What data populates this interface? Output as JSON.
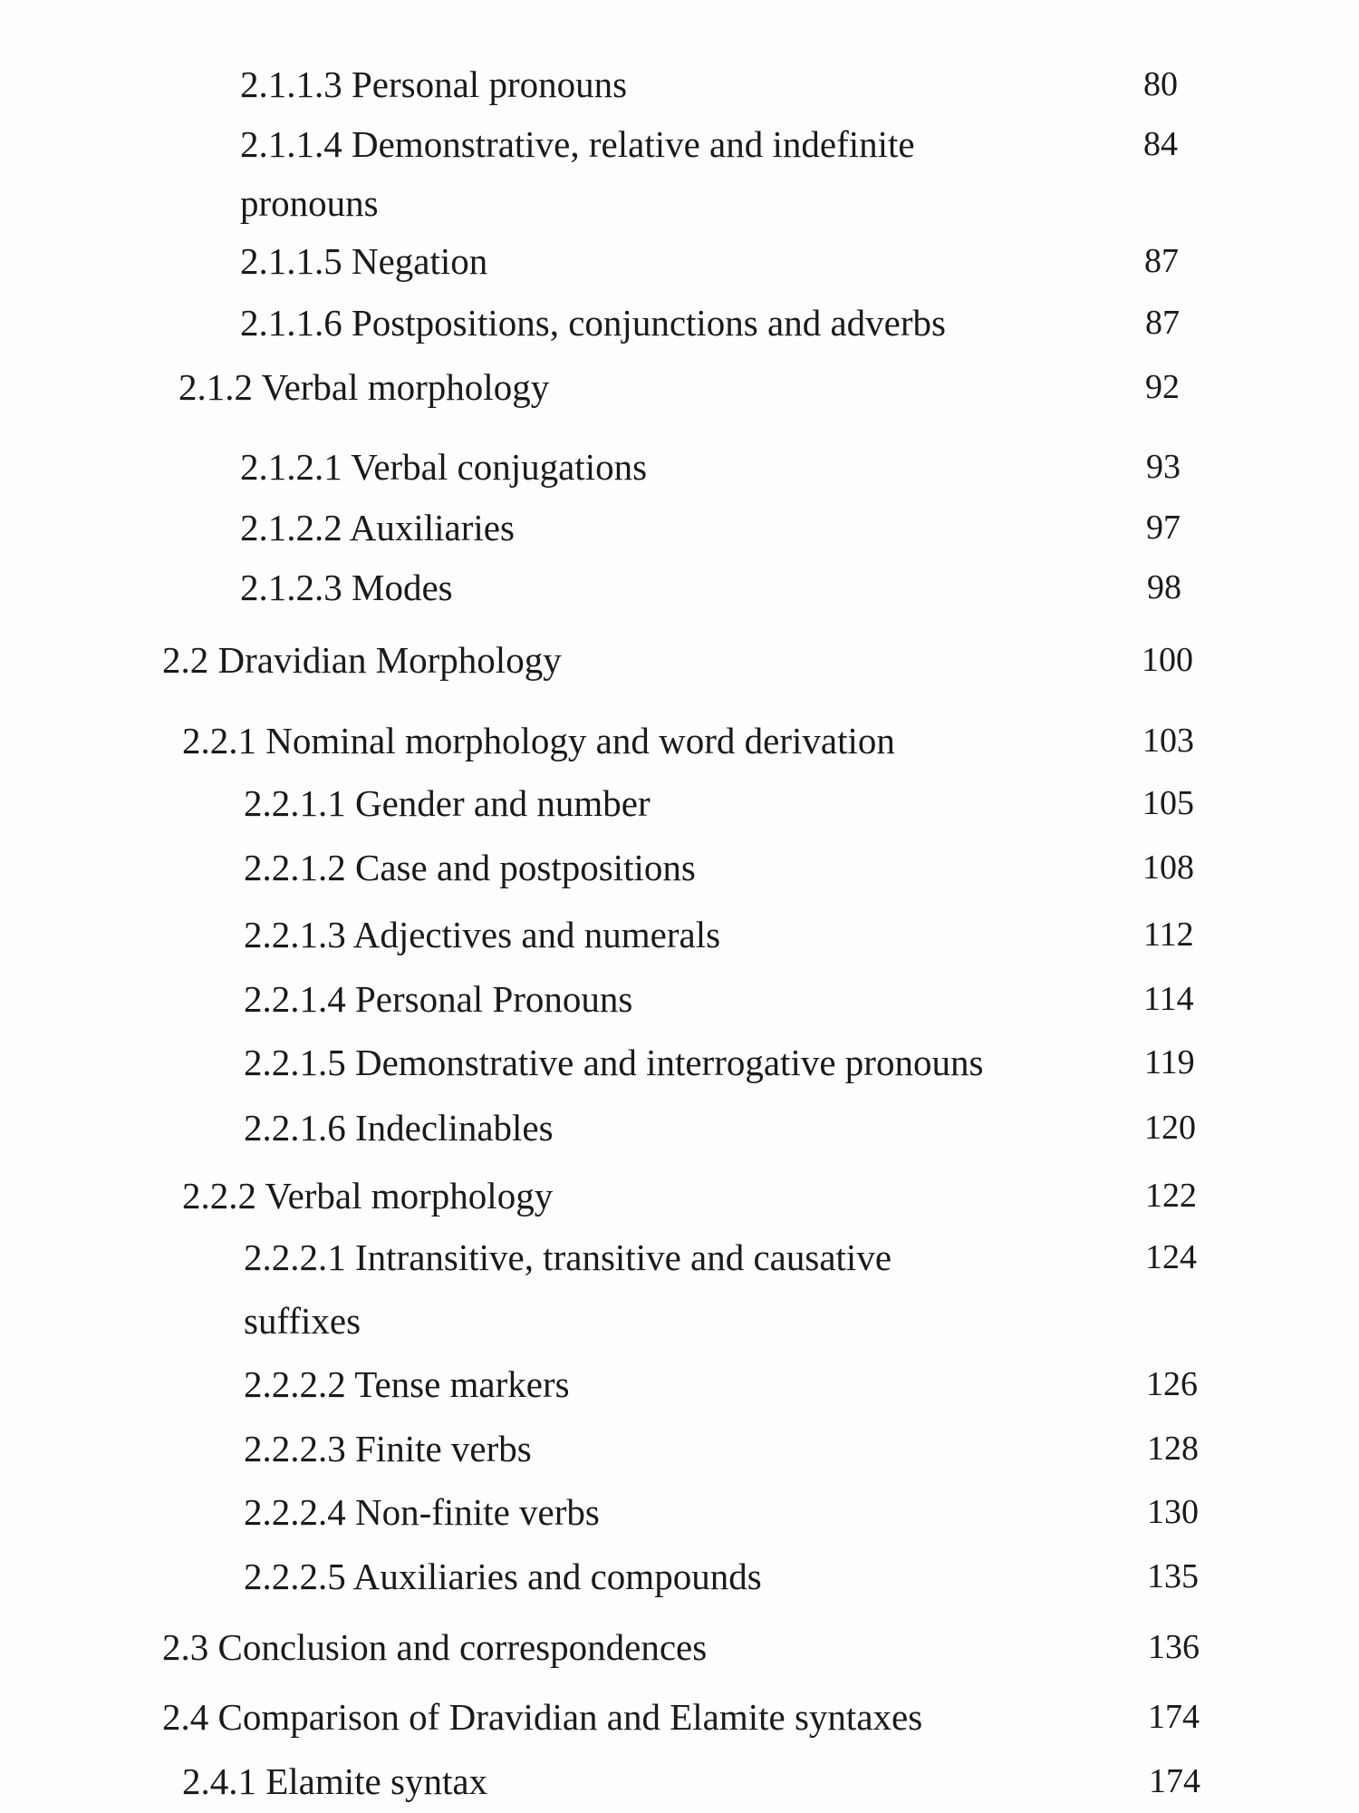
{
  "toc": {
    "entries": [
      {
        "title": "2.1.1.3 Personal pronouns",
        "page": "80",
        "level": 4
      },
      {
        "title": "2.1.1.4 Demonstrative, relative and indefinite",
        "page": "84",
        "level": 4
      },
      {
        "title": "pronouns",
        "page": "",
        "level": 4
      },
      {
        "title": "2.1.1.5 Negation",
        "page": "87",
        "level": 4
      },
      {
        "title": "2.1.1.6 Postpositions, conjunctions and adverbs",
        "page": "87",
        "level": 4
      },
      {
        "title": "2.1.2 Verbal morphology",
        "page": "92",
        "level": 3
      },
      {
        "title": "2.1.2.1 Verbal conjugations",
        "page": "93",
        "level": 4
      },
      {
        "title": "2.1.2.2 Auxiliaries",
        "page": "97",
        "level": 4
      },
      {
        "title": "2.1.2.3 Modes",
        "page": "98",
        "level": 4
      },
      {
        "title": "2.2 Dravidian Morphology",
        "page": "100",
        "level": 2
      },
      {
        "title": "2.2.1 Nominal morphology and word derivation",
        "page": "103",
        "level": 3
      },
      {
        "title": "2.2.1.1 Gender and number",
        "page": "105",
        "level": 4
      },
      {
        "title": "2.2.1.2 Case and postpositions",
        "page": "108",
        "level": 4
      },
      {
        "title": "2.2.1.3 Adjectives and numerals",
        "page": "112",
        "level": 4
      },
      {
        "title": "2.2.1.4 Personal Pronouns",
        "page": "114",
        "level": 4
      },
      {
        "title": "2.2.1.5 Demonstrative and interrogative pronouns",
        "page": "119",
        "level": 4
      },
      {
        "title": "2.2.1.6 Indeclinables",
        "page": "120",
        "level": 4
      },
      {
        "title": "2.2.2 Verbal morphology",
        "page": "122",
        "level": 3
      },
      {
        "title": "2.2.2.1 Intransitive, transitive and causative",
        "page": "124",
        "level": 4
      },
      {
        "title": "suffixes",
        "page": "",
        "level": 4
      },
      {
        "title": "2.2.2.2 Tense markers",
        "page": "126",
        "level": 4
      },
      {
        "title": "2.2.2.3 Finite verbs",
        "page": "128",
        "level": 4
      },
      {
        "title": "2.2.2.4 Non-finite verbs",
        "page": "130",
        "level": 4
      },
      {
        "title": "2.2.2.5 Auxiliaries and compounds",
        "page": "135",
        "level": 4
      },
      {
        "title": "2.3 Conclusion and correspondences",
        "page": "136",
        "level": 2
      },
      {
        "title": "2.4 Comparison of Dravidian and Elamite syntaxes",
        "page": "174",
        "level": 2
      },
      {
        "title": "2.4.1 Elamite syntax",
        "page": "174",
        "level": 3
      }
    ]
  }
}
